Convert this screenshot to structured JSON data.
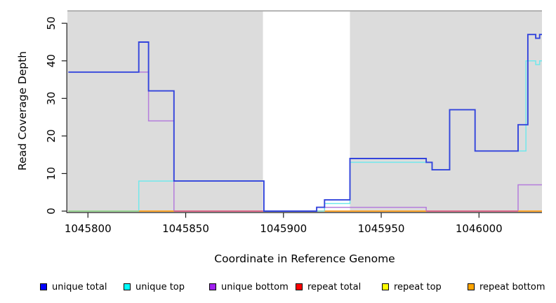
{
  "figure": {
    "xlabel": "Coordinate in Reference Genome",
    "ylabel": "Read Coverage Depth"
  },
  "chart_data": {
    "type": "line",
    "subtype": "step-coverage",
    "title": "",
    "xlabel": "Coordinate in Reference Genome",
    "ylabel": "Read Coverage Depth",
    "xlim": [
      1045789.5,
      1046032.2
    ],
    "ylim": [
      0,
      53.3
    ],
    "x_ticks": [
      1045800,
      1045850,
      1045900,
      1045950,
      1046000
    ],
    "y_ticks": [
      0,
      10,
      20,
      30,
      40,
      50
    ],
    "grid": false,
    "plot_bg": "#DCDCDC",
    "uncovered_region": {
      "from": 1045889.5,
      "to": 1045934,
      "color": "#FFFFFF"
    },
    "top_border_color": "#909090",
    "axis_color": "#1A1A1A",
    "legend_position": "bottom",
    "legend": [
      {
        "label": "unique total",
        "swatch": "#0000FF"
      },
      {
        "label": "unique top",
        "swatch": "#00FFFF"
      },
      {
        "label": "unique bottom",
        "swatch": "#A020F0"
      },
      {
        "label": "repeat total",
        "swatch": "#FF0000"
      },
      {
        "label": "repeat top",
        "swatch": "#FFFF00"
      },
      {
        "label": "repeat bottom",
        "swatch": "#FFA500"
      }
    ],
    "series": [
      {
        "name": "repeat top",
        "color": "#E8E800",
        "width": 1.4,
        "z": 1,
        "points": [
          [
            1045790,
            0
          ]
        ]
      },
      {
        "name": "repeat total",
        "color": "#E8455A",
        "width": 1.4,
        "z": 1,
        "points": [
          [
            1045790,
            0
          ]
        ]
      },
      {
        "name": "repeat bottom",
        "color": "#FFA520",
        "width": 1.5,
        "z": 1,
        "points": [
          [
            1045790,
            0
          ]
        ]
      },
      {
        "name": "unique top",
        "color": "#72E8EC",
        "width": 1.5,
        "z": 1,
        "points": [
          [
            1045790,
            0
          ],
          [
            1045826,
            8
          ],
          [
            1045890,
            0
          ],
          [
            1045921,
            2
          ],
          [
            1045934,
            13
          ],
          [
            1045976,
            11
          ],
          [
            1045985,
            27
          ],
          [
            1045998,
            16
          ],
          [
            1046024,
            40
          ],
          [
            1046029,
            39
          ],
          [
            1046031,
            40
          ]
        ]
      },
      {
        "name": "unique bottom",
        "color": "#B47CDC",
        "width": 1.5,
        "z": 1,
        "points": [
          [
            1045790,
            37
          ],
          [
            1045831,
            24
          ],
          [
            1045844,
            0
          ],
          [
            1045917,
            1
          ],
          [
            1045973,
            0
          ],
          [
            1046020,
            7
          ]
        ]
      },
      {
        "name": "unique total",
        "color": "#3344DC",
        "width": 1.9,
        "z": 3,
        "points": [
          [
            1045790,
            37
          ],
          [
            1045826,
            45
          ],
          [
            1045831,
            32
          ],
          [
            1045844,
            8
          ],
          [
            1045890,
            0
          ],
          [
            1045917,
            1
          ],
          [
            1045921,
            3
          ],
          [
            1045934,
            14
          ],
          [
            1045973,
            13
          ],
          [
            1045976,
            11
          ],
          [
            1045985,
            27
          ],
          [
            1045998,
            16
          ],
          [
            1046020,
            23
          ],
          [
            1046025,
            47
          ],
          [
            1046029,
            46
          ],
          [
            1046031,
            47
          ]
        ]
      }
    ],
    "baseline_segments": [
      {
        "from": 1045790,
        "to": 1045826,
        "color": "#8FD98F"
      },
      {
        "from": 1045826,
        "to": 1045844,
        "color": "#FFA520"
      },
      {
        "from": 1045844,
        "to": 1045889.5,
        "color": "#E05A85"
      },
      {
        "from": 1045921,
        "to": 1045973,
        "color": "#FFA520"
      },
      {
        "from": 1045973,
        "to": 1046020,
        "color": "#E05A85"
      },
      {
        "from": 1046020,
        "to": 1046032.2,
        "color": "#FFA520"
      }
    ]
  }
}
